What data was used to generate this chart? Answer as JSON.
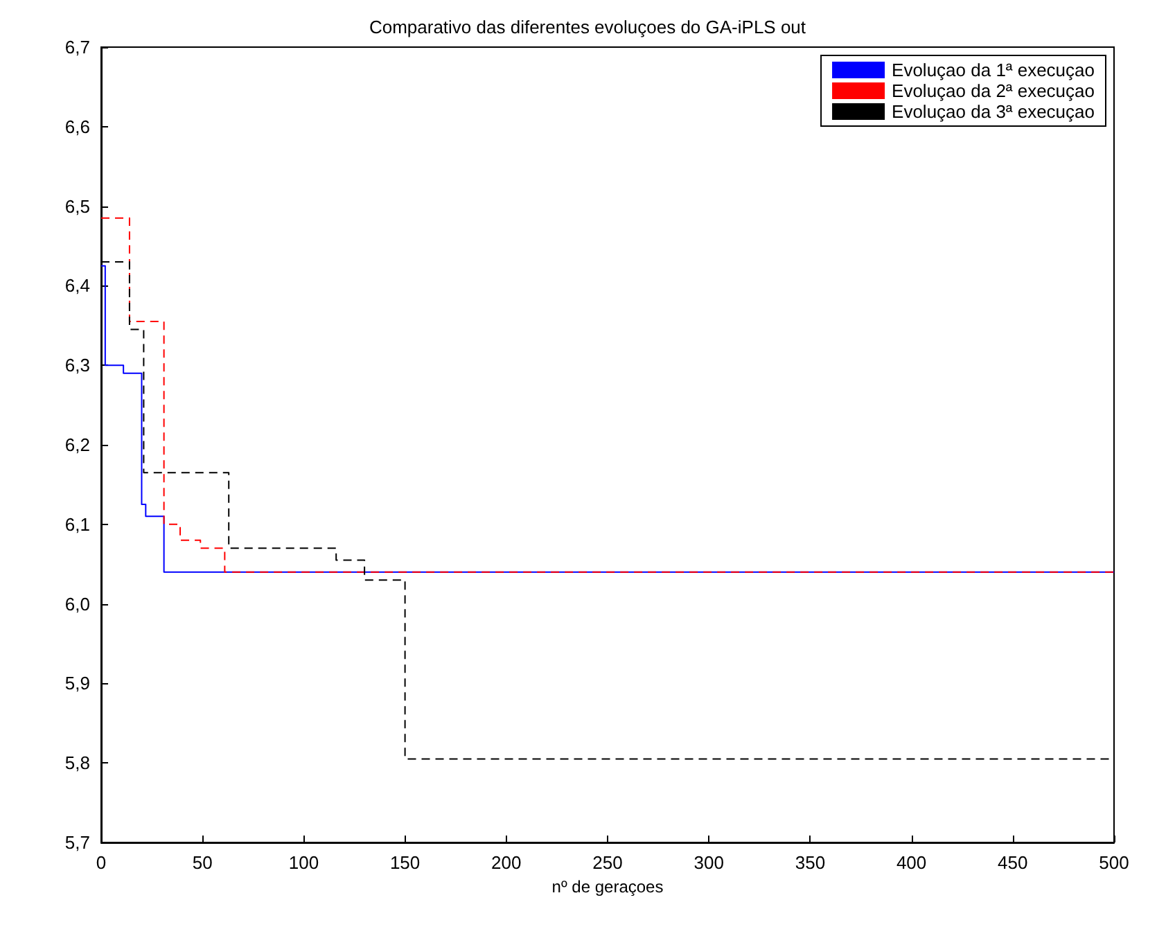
{
  "chart_data": {
    "type": "step",
    "title": "Comparativo das diferentes evoluçoes do GA-iPLS out",
    "xlabel": "nº de geraçoes",
    "series": [
      {
        "name": "Evoluçao da 1ª execuçao",
        "color": "#0000ff",
        "line_style": "solid",
        "x": [
          0,
          2,
          11,
          20,
          22,
          31,
          500
        ],
        "values": [
          6.425,
          6.3,
          6.29,
          6.125,
          6.11,
          6.04,
          6.04
        ]
      },
      {
        "name": "Evoluçao da 2ª execuçao",
        "color": "#ff0000",
        "line_style": "dashed",
        "x": [
          0,
          14,
          31,
          39,
          49,
          61,
          500
        ],
        "values": [
          6.485,
          6.355,
          6.1,
          6.08,
          6.07,
          6.04,
          6.04
        ]
      },
      {
        "name": "Evoluçao da 3ª execuçao",
        "color": "#000000",
        "line_style": "dashed",
        "x": [
          0,
          14,
          21,
          63,
          116,
          130,
          150,
          500
        ],
        "values": [
          6.43,
          6.345,
          6.165,
          6.07,
          6.055,
          6.03,
          5.805,
          5.805
        ]
      }
    ],
    "xlim": [
      0,
      500
    ],
    "xticks": [
      0,
      50,
      100,
      150,
      200,
      250,
      300,
      350,
      400,
      450,
      500
    ],
    "ylim": [
      5.7,
      6.7
    ],
    "yticks": [
      {
        "value": 5.7,
        "label": "5,7"
      },
      {
        "value": 5.8,
        "label": "5,8"
      },
      {
        "value": 5.9,
        "label": "5,9"
      },
      {
        "value": 6.0,
        "label": "6,0"
      },
      {
        "value": 6.1,
        "label": "6,1"
      },
      {
        "value": 6.2,
        "label": "6,2"
      },
      {
        "value": 6.3,
        "label": "6,3"
      },
      {
        "value": 6.4,
        "label": "6,4"
      },
      {
        "value": 6.5,
        "label": "6,5"
      },
      {
        "value": 6.6,
        "label": "6,6"
      },
      {
        "value": 6.7,
        "label": "6,7"
      }
    ],
    "grid": false,
    "legend": "top right",
    "marker": "none"
  }
}
